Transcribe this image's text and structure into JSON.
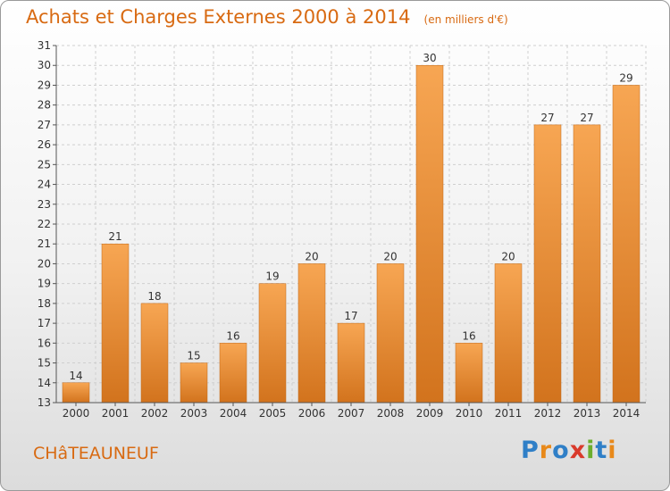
{
  "header": {
    "title": "Achats et Charges Externes 2000 à 2014",
    "subtitle": "(en milliers d'€)"
  },
  "footer": {
    "place": "CHâTEAUNEUF",
    "logo": "Proxiti",
    "logo_colors": [
      "#2f7fc7",
      "#e8891a",
      "#2f7fc7",
      "#d93a2b",
      "#6cae2e",
      "#2f7fc7",
      "#e8891a"
    ]
  },
  "colors": {
    "bar_light": "#f7a653",
    "bar_dark": "#d2731d",
    "grid": "#cfcfcf",
    "axis": "#555555",
    "title": "#d86a12"
  },
  "chart_data": {
    "type": "bar",
    "title": "Achats et Charges Externes 2000 à 2014",
    "subtitle": "(en milliers d'€)",
    "categories": [
      "2000",
      "2001",
      "2002",
      "2003",
      "2004",
      "2005",
      "2006",
      "2007",
      "2008",
      "2009",
      "2010",
      "2011",
      "2012",
      "2013",
      "2014"
    ],
    "values": [
      14,
      21,
      18,
      15,
      16,
      19,
      20,
      17,
      20,
      30,
      16,
      20,
      27,
      27,
      29
    ],
    "ylim": [
      13,
      31
    ],
    "yticks": [
      13,
      14,
      15,
      16,
      17,
      18,
      19,
      20,
      21,
      22,
      23,
      24,
      25,
      26,
      27,
      28,
      29,
      30,
      31
    ],
    "grid": true,
    "data_labels": true
  }
}
